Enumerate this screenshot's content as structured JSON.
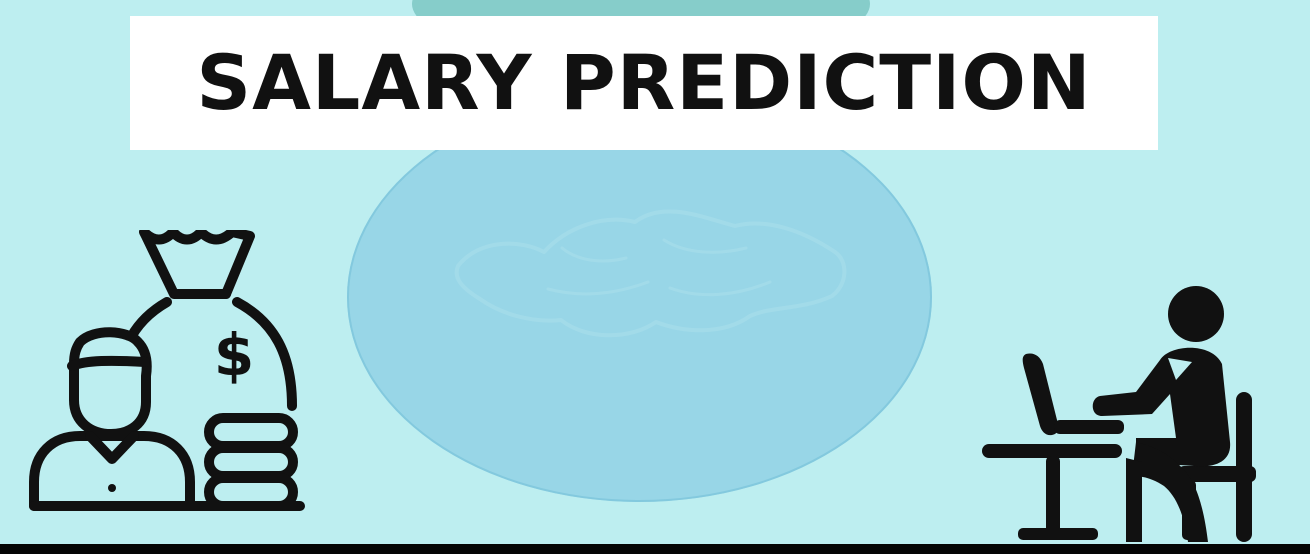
{
  "page": {
    "title": "SALARY PREDICTION"
  },
  "colors": {
    "background": "#bdeef0",
    "circle": "#98d6e7",
    "top_arc": "#86cdca",
    "title_background": "#ffffff",
    "title_text": "#111111",
    "line_art": "#111111"
  },
  "illustrations": {
    "left": {
      "money_bag_icon": "money-bag-icon",
      "dollar_sign": "$",
      "person_icon": "person-icon",
      "coins_icon": "coins-stack-icon"
    },
    "right": {
      "worker_icon": "person-at-laptop-icon",
      "laptop_icon": "laptop-icon",
      "desk_icon": "desk-icon",
      "chair_icon": "chair-icon"
    }
  }
}
